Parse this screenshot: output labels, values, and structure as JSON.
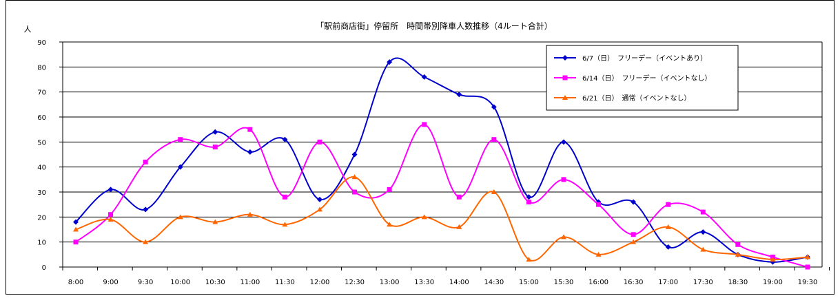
{
  "chart_data": {
    "type": "line",
    "title": "「駅前商店街」停留所　時間帯別降車人数推移（4ルート合計）",
    "ylabel": "人",
    "xlabel": "",
    "ylim": [
      0,
      90
    ],
    "yticks": [
      0,
      10,
      20,
      30,
      40,
      50,
      60,
      70,
      80,
      90
    ],
    "grid": true,
    "legend_position": "top-right",
    "categories": [
      "8:00",
      "9:00",
      "9:30",
      "10:00",
      "10:30",
      "11:00",
      "11:30",
      "12:00",
      "12:30",
      "13:00",
      "13:30",
      "14:00",
      "14:30",
      "15:00",
      "15:30",
      "16:00",
      "16:30",
      "17:00",
      "17:30",
      "18:30",
      "19:00",
      "19:30"
    ],
    "series": [
      {
        "name": "6/7（日）　フリーデー（イベントあり）",
        "color": "#0000CC",
        "marker": "diamond",
        "values": [
          18,
          31,
          23,
          40,
          54,
          46,
          51,
          27,
          45,
          82,
          76,
          69,
          64,
          28,
          50,
          26,
          26,
          8,
          14,
          5,
          2,
          4
        ]
      },
      {
        "name": "6/14（日）　フリーデー（イベントなし）",
        "color": "#FF00FF",
        "marker": "square",
        "values": [
          10,
          21,
          42,
          51,
          48,
          55,
          28,
          50,
          30,
          31,
          57,
          28,
          51,
          26,
          35,
          25,
          13,
          25,
          22,
          9,
          4,
          0
        ]
      },
      {
        "name": "6/21（日）　通常（イベントなし）",
        "color": "#FF6600",
        "marker": "triangle",
        "values": [
          15,
          19,
          10,
          20,
          18,
          21,
          17,
          23,
          36,
          17,
          20,
          16,
          30,
          3,
          12,
          5,
          10,
          16,
          7,
          5,
          3,
          4
        ]
      }
    ]
  }
}
